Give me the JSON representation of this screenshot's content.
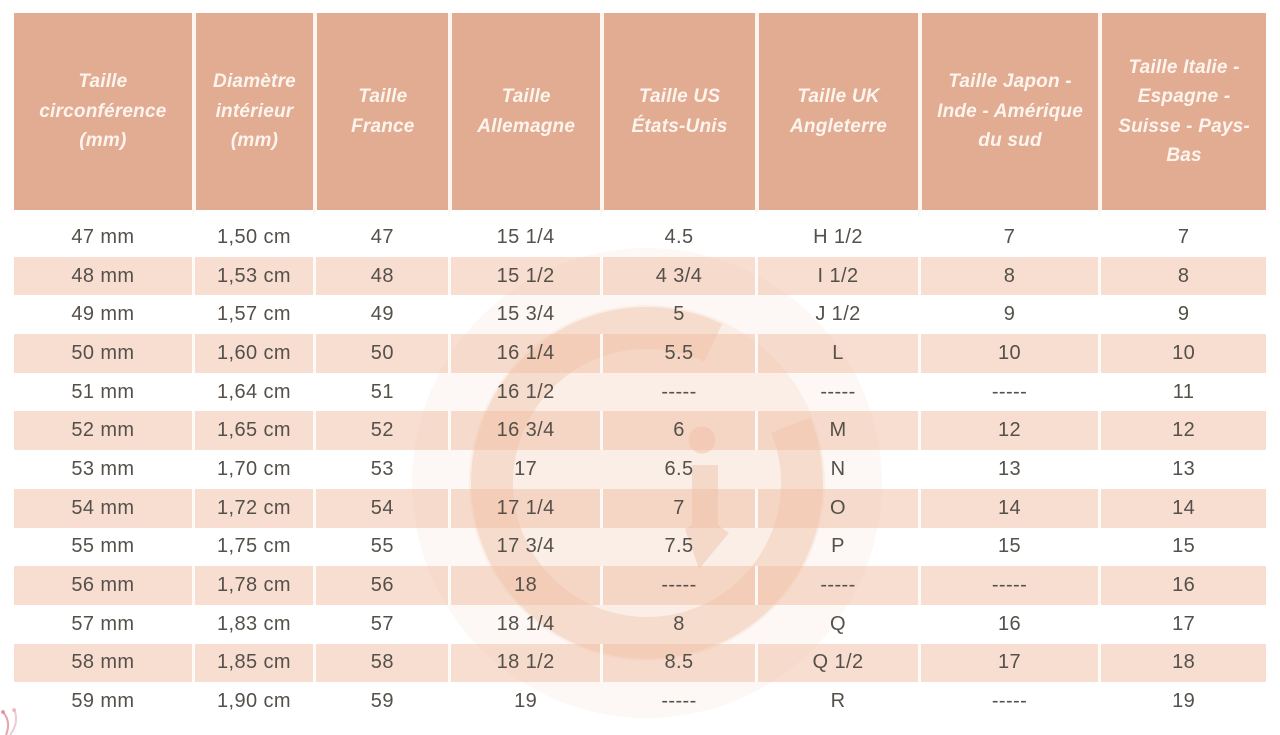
{
  "page": {
    "description": "Ring size international conversion chart (French)",
    "background": "#ffffff"
  },
  "colors": {
    "header_bg": "#e2ac92",
    "header_text": "#fdf4ee",
    "row_alt_bg": "#f8ded1",
    "row_white_bg": "#ffffff",
    "cell_text": "#55504a",
    "cell_separator": "#fcf6f0",
    "watermark": "#ecb89e",
    "corner_decoration": "#dc8691"
  },
  "watermark": {
    "icon": "g-logo-watermark-icon",
    "letter": "G"
  },
  "table": {
    "columns": [
      "Taille circonférence (mm)",
      "Diamètre intérieur (mm)",
      "Taille France",
      "Taille Allemagne",
      "Taille US États-Unis",
      "Taille UK Angleterre",
      "Taille Japon - Inde - Amérique du sud",
      "Taille Italie - Espagne - Suisse - Pays-Bas"
    ],
    "rows": [
      [
        "47 mm",
        "1,50 cm",
        "47",
        "15 1/4",
        "4.5",
        "H 1/2",
        "7",
        "7"
      ],
      [
        "48 mm",
        "1,53 cm",
        "48",
        "15 1/2",
        "4 3/4",
        "I 1/2",
        "8",
        "8"
      ],
      [
        "49 mm",
        "1,57 cm",
        "49",
        "15 3/4",
        "5",
        "J 1/2",
        "9",
        "9"
      ],
      [
        "50 mm",
        "1,60 cm",
        "50",
        "16 1/4",
        "5.5",
        "L",
        "10",
        "10"
      ],
      [
        "51 mm",
        "1,64 cm",
        "51",
        "16 1/2",
        "-----",
        "-----",
        "-----",
        "11"
      ],
      [
        "52 mm",
        "1,65 cm",
        "52",
        "16 3/4",
        "6",
        "M",
        "12",
        "12"
      ],
      [
        "53 mm",
        "1,70 cm",
        "53",
        "17",
        "6.5",
        "N",
        "13",
        "13"
      ],
      [
        "54 mm",
        "1,72 cm",
        "54",
        "17 1/4",
        "7",
        "O",
        "14",
        "14"
      ],
      [
        "55 mm",
        "1,75 cm",
        "55",
        "17 3/4",
        "7.5",
        "P",
        "15",
        "15"
      ],
      [
        "56 mm",
        "1,78 cm",
        "56",
        "18",
        "-----",
        "-----",
        "-----",
        "16"
      ],
      [
        "57 mm",
        "1,83 cm",
        "57",
        "18 1/4",
        "8",
        "Q",
        "16",
        "17"
      ],
      [
        "58 mm",
        "1,85 cm",
        "58",
        "18 1/2",
        "8.5",
        "Q 1/2",
        "17",
        "18"
      ],
      [
        "59 mm",
        "1,90 cm",
        "59",
        "19",
        "-----",
        "R",
        "-----",
        "19"
      ]
    ]
  }
}
